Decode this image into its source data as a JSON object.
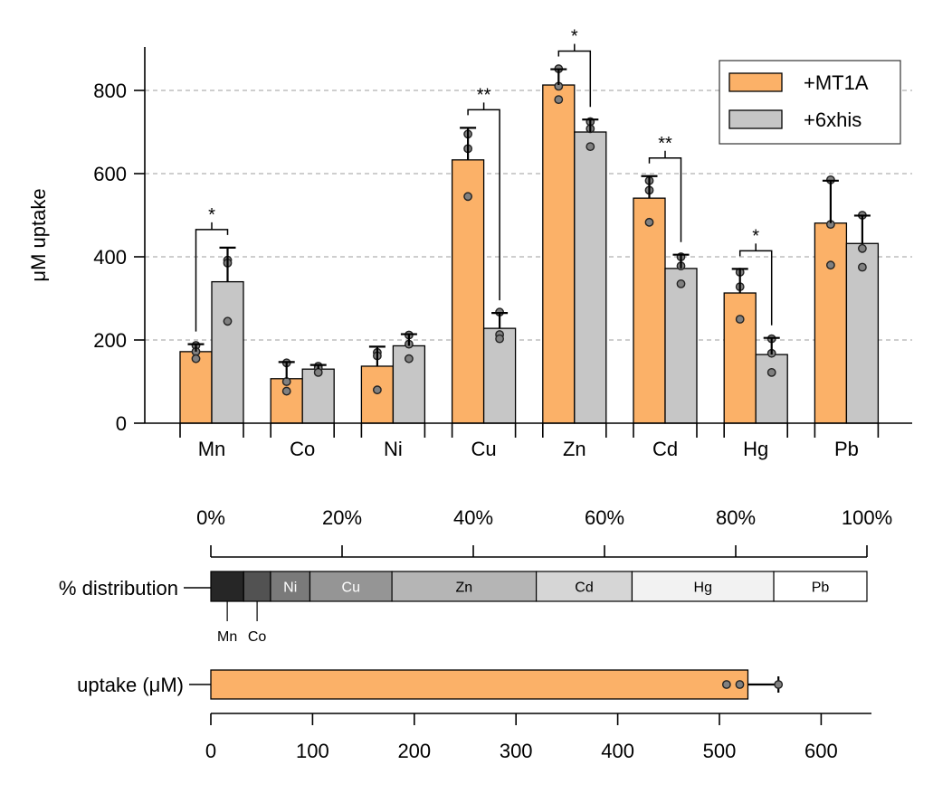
{
  "colors": {
    "mt1a": "#FBB168",
    "his": "#C6C6C6",
    "grid": "#b0b0b0"
  },
  "chart_data": [
    {
      "type": "bar",
      "ylabel": "μM uptake",
      "xlabel": "",
      "ylim": [
        0,
        900
      ],
      "yticks": [
        0,
        200,
        400,
        600,
        800
      ],
      "grid": "horizontal dashed",
      "legend_position": "top-right",
      "categories": [
        "Mn",
        "Co",
        "Ni",
        "Cu",
        "Zn",
        "Cd",
        "Hg",
        "Pb"
      ],
      "series": [
        {
          "name": "+MT1A",
          "values": [
            172,
            107,
            137,
            633,
            813,
            541,
            313,
            481
          ],
          "errors": [
            18,
            40,
            47,
            77,
            38,
            53,
            58,
            102
          ],
          "points": [
            [
              187,
              172,
              155
            ],
            [
              145,
              100,
              77
            ],
            [
              170,
              162,
              80
            ],
            [
              695,
              660,
              545
            ],
            [
              852,
              810,
              778
            ],
            [
              583,
              560,
              483
            ],
            [
              363,
              328,
              250
            ],
            [
              585,
              478,
              380
            ]
          ]
        },
        {
          "name": "+6xhis",
          "values": [
            340,
            130,
            186,
            228,
            700,
            372,
            165,
            432
          ],
          "errors": [
            82,
            10,
            28,
            37,
            30,
            33,
            40,
            67
          ],
          "points": [
            [
              392,
              385,
              245
            ],
            [
              137,
              132,
              122
            ],
            [
              212,
              190,
              155
            ],
            [
              267,
              213,
              203
            ],
            [
              725,
              708,
              665
            ],
            [
              400,
              378,
              335
            ],
            [
              203,
              168,
              122
            ],
            [
              500,
              420,
              375
            ]
          ]
        }
      ],
      "significance": [
        {
          "category": "Mn",
          "label": "*"
        },
        {
          "category": "Cu",
          "label": "**"
        },
        {
          "category": "Zn",
          "label": "*"
        },
        {
          "category": "Cd",
          "label": "**"
        },
        {
          "category": "Hg",
          "label": "*"
        }
      ]
    },
    {
      "type": "bar",
      "orientation": "horizontal-stacked",
      "ylabel": "% distribution",
      "xticks": [
        "0%",
        "20%",
        "40%",
        "60%",
        "80%",
        "100%"
      ],
      "xlim": [
        0,
        100
      ],
      "segments": [
        {
          "name": "Mn",
          "percent": 5.0,
          "color": "#262626",
          "text_color": "#ffffff"
        },
        {
          "name": "Co",
          "percent": 4.1,
          "color": "#525252",
          "text_color": "#ffffff"
        },
        {
          "name": "Ni",
          "percent": 6.0,
          "color": "#7a7a7a",
          "text_color": "#ffffff"
        },
        {
          "name": "Cu",
          "percent": 12.5,
          "color": "#959595",
          "text_color": "#ffffff"
        },
        {
          "name": "Zn",
          "percent": 22.0,
          "color": "#b5b5b5",
          "text_color": "#000000"
        },
        {
          "name": "Cd",
          "percent": 14.6,
          "color": "#d6d6d6",
          "text_color": "#000000"
        },
        {
          "name": "Hg",
          "percent": 21.6,
          "color": "#f2f2f2",
          "text_color": "#000000"
        },
        {
          "name": "Pb",
          "percent": 14.2,
          "color": "#ffffff",
          "text_color": "#000000"
        }
      ]
    },
    {
      "type": "bar",
      "orientation": "horizontal",
      "ylabel": "uptake (μM)",
      "xlim": [
        0,
        650
      ],
      "xticks": [
        0,
        100,
        200,
        300,
        400,
        500,
        600
      ],
      "value": 528,
      "error": 30,
      "points": [
        507,
        520,
        558
      ],
      "color": "#FBB168"
    }
  ]
}
